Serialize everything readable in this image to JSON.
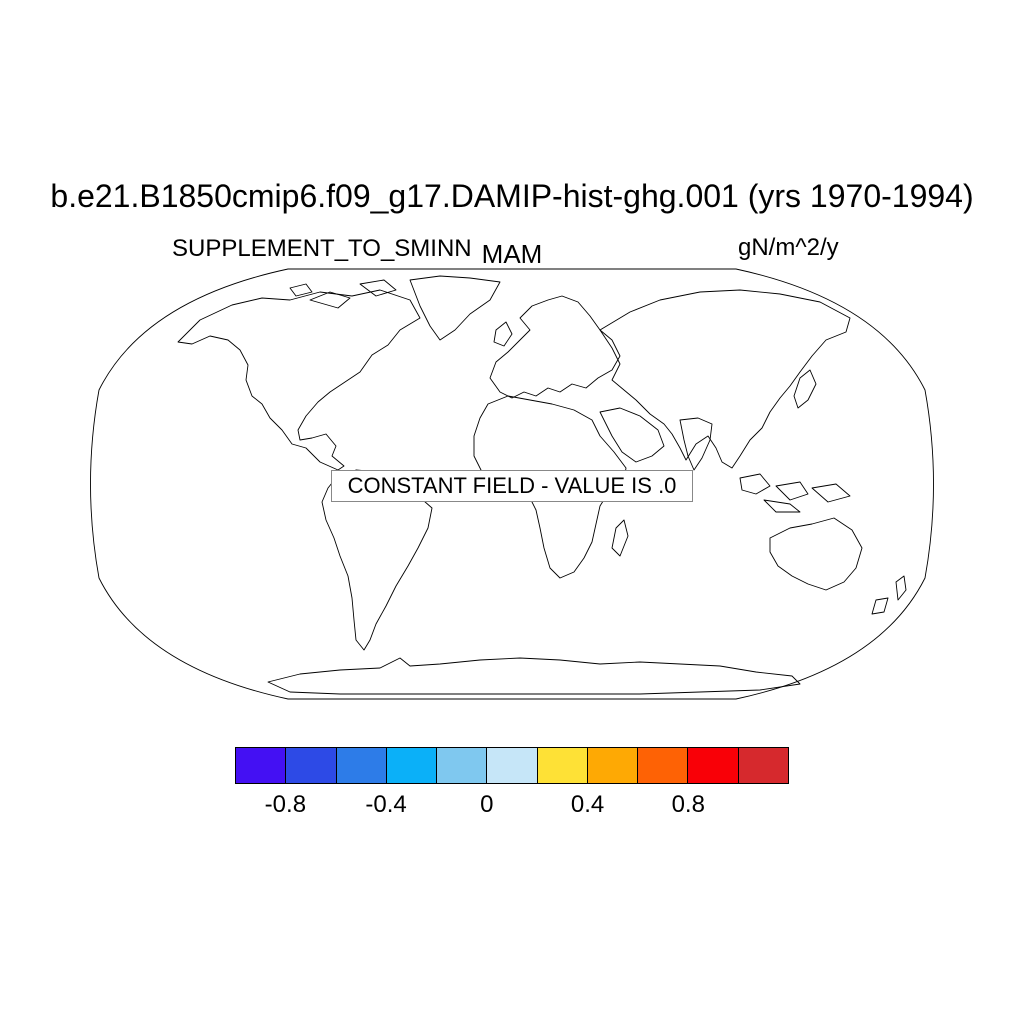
{
  "title": "b.e21.B1850cmip6.f09_g17.DAMIP-hist-ghg.001 (yrs 1970-1994)",
  "left_string": "SUPPLEMENT_TO_SMINN",
  "center_string": "MAM",
  "right_string": "gN/m^2/y",
  "constant_field_text": "CONSTANT FIELD - VALUE IS .0",
  "projection": "robinson",
  "colorbar": {
    "colors": [
      "#4410f3",
      "#2d4ae6",
      "#2d7ce8",
      "#0bb0f8",
      "#7fc8ef",
      "#c6e6f8",
      "#fee136",
      "#fea904",
      "#fe6205",
      "#f90007",
      "#d6292d"
    ],
    "tick_labels": [
      "-0.8",
      "-0.4",
      "0",
      "0.4",
      "0.8"
    ],
    "tick_values": [
      -0.8,
      -0.4,
      0,
      0.4,
      0.8
    ],
    "levels": [
      -1.0,
      -0.8,
      -0.6,
      -0.4,
      -0.2,
      0,
      0.2,
      0.4,
      0.6,
      0.8,
      1.0
    ]
  }
}
